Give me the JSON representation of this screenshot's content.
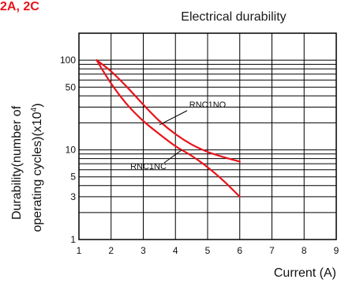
{
  "header_fragment": "2A, 2C",
  "chart_data": {
    "type": "line",
    "title": "Electrical durability",
    "xlabel": "Current (A)",
    "ylabel_line1": "Durability(number of",
    "ylabel_line2": "operating cycles)(x10",
    "ylabel_exp": "4",
    "ylabel_close": ")",
    "x_scale": "linear",
    "y_scale": "log",
    "xlim": [
      1,
      9
    ],
    "ylim": [
      1,
      200
    ],
    "x_ticks": [
      "1",
      "2",
      "3",
      "4",
      "5",
      "6",
      "7",
      "8",
      "9"
    ],
    "y_ticks": [
      {
        "value": 1,
        "label": "1"
      },
      {
        "value": 3,
        "label": "3"
      },
      {
        "value": 5,
        "label": "5"
      },
      {
        "value": 10,
        "label": "10"
      },
      {
        "value": 50,
        "label": "50"
      },
      {
        "value": 100,
        "label": "100"
      }
    ],
    "grid": true,
    "line_color": "#e8141b",
    "series": [
      {
        "name": "RNC1NO",
        "x": [
          1.55,
          2.0,
          2.5,
          3.0,
          3.5,
          4.0,
          4.5,
          5.0,
          5.5,
          6.0
        ],
        "y": [
          100,
          75,
          50,
          32,
          21,
          15,
          11.5,
          9.5,
          8.3,
          7.4
        ]
      },
      {
        "name": "RNC1NC",
        "x": [
          1.55,
          2.0,
          2.5,
          3.0,
          3.5,
          4.0,
          4.5,
          5.0,
          5.5,
          6.0
        ],
        "y": [
          100,
          55,
          32,
          21,
          15,
          11,
          8.6,
          6.4,
          4.5,
          3.0
        ]
      }
    ],
    "annotations": [
      {
        "text": "RNC1NO",
        "series": "RNC1NO"
      },
      {
        "text": "RNC1NC",
        "series": "RNC1NC"
      }
    ]
  }
}
